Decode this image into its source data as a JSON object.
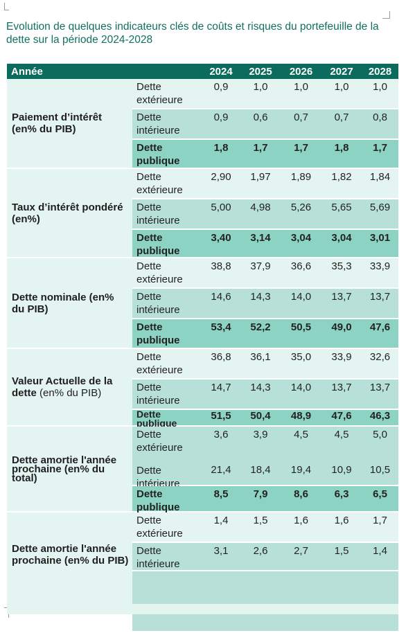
{
  "title": "Evolution de quelques indicateurs clés de coûts et risques du portefeuille de la dette sur la période 2024-2028",
  "header": {
    "col0": "Année",
    "years": [
      "2024",
      "2025",
      "2026",
      "2027",
      "2028"
    ]
  },
  "groups": [
    {
      "label": "Paiement d’intérêt",
      "sub": "(en% du PIB)",
      "sub_bold": true,
      "rows": [
        {
          "cat": "Dette extérieure",
          "values": [
            "0,9",
            "1,0",
            "1,0",
            "1,0",
            "1,0"
          ]
        },
        {
          "cat": "Dette intérieure",
          "values": [
            "0,9",
            "0,6",
            "0,7",
            "0,7",
            "0,8"
          ]
        },
        {
          "cat": "Dette publique",
          "values": [
            "1,8",
            "1,7",
            "1,7",
            "1,8",
            "1,7"
          ]
        }
      ]
    },
    {
      "label": "Taux d’intérêt pondéré",
      "sub": "(en%)",
      "sub_bold": true,
      "rows": [
        {
          "cat": "Dette extérieure",
          "values": [
            "2,90",
            "1,97",
            "1,89",
            "1,82",
            "1,84"
          ]
        },
        {
          "cat": "Dette intérieure",
          "values": [
            "5,00",
            "4,98",
            "5,26",
            "5,65",
            "5,69"
          ]
        },
        {
          "cat": "Dette publique",
          "values": [
            "3,40",
            "3,14",
            "3,04",
            "3,04",
            "3,01"
          ]
        }
      ]
    },
    {
      "label": "Dette nominale (en%",
      "sub": "du PIB)",
      "sub_bold": true,
      "rows": [
        {
          "cat": "Dette extérieure",
          "values": [
            "38,8",
            "37,9",
            "36,6",
            "35,3",
            "33,9"
          ]
        },
        {
          "cat": "Dette intérieure",
          "values": [
            "14,6",
            "14,3",
            "14,0",
            "13,7",
            "13,7"
          ]
        },
        {
          "cat": "Dette publique",
          "values": [
            "53,4",
            "52,2",
            "50,5",
            "49,0",
            "47,6"
          ]
        }
      ]
    },
    {
      "label": "Valeur Actuelle de la",
      "sub_bold_part": "dette",
      "sub": "(en% du PIB)",
      "rows": [
        {
          "cat": "Dette extérieure",
          "values": [
            "36,8",
            "36,1",
            "35,0",
            "33,9",
            "32,6"
          ]
        },
        {
          "cat": "Dette intérieure",
          "values": [
            "14,7",
            "14,3",
            "14,0",
            "13,7",
            "13,7"
          ]
        },
        {
          "cat": "Dette publique",
          "values": [
            "51,5",
            "50,4",
            "48,9",
            "47,6",
            "46,3"
          ]
        }
      ]
    },
    {
      "label": "Dette amortie l'année",
      "sub": "prochaine (en% du total)",
      "rows": [
        {
          "cat": "Dette extérieure",
          "values": [
            "3,6",
            "3,9",
            "4,5",
            "4,5",
            "5,0"
          ]
        },
        {
          "cat": "Dette intérieure",
          "values": [
            "21,4",
            "18,4",
            "19,4",
            "10,9",
            "10,5"
          ]
        },
        {
          "cat": "Dette publique",
          "values": [
            "8,5",
            "7,9",
            "8,6",
            "6,3",
            "6,5"
          ]
        }
      ]
    },
    {
      "label": "Dette amortie l'année",
      "sub": "prochaine (en% du PIB)",
      "rows": [
        {
          "cat": "Dette extérieure",
          "values": [
            "1,4",
            "1,5",
            "1,6",
            "1,6",
            "1,7"
          ]
        },
        {
          "cat": "Dette intérieure",
          "values": [
            "3,1",
            "2,6",
            "2,7",
            "1,5",
            "1,4"
          ]
        }
      ]
    }
  ]
}
